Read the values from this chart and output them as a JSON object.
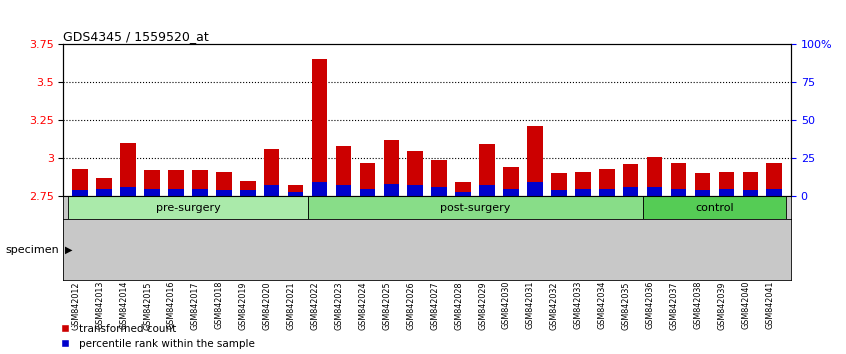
{
  "title": "GDS4345 / 1559520_at",
  "samples": [
    "GSM842012",
    "GSM842013",
    "GSM842014",
    "GSM842015",
    "GSM842016",
    "GSM842017",
    "GSM842018",
    "GSM842019",
    "GSM842020",
    "GSM842021",
    "GSM842022",
    "GSM842023",
    "GSM842024",
    "GSM842025",
    "GSM842026",
    "GSM842027",
    "GSM842028",
    "GSM842029",
    "GSM842030",
    "GSM842031",
    "GSM842032",
    "GSM842033",
    "GSM842034",
    "GSM842035",
    "GSM842036",
    "GSM842037",
    "GSM842038",
    "GSM842039",
    "GSM842040",
    "GSM842041"
  ],
  "red_values": [
    2.93,
    2.87,
    3.1,
    2.92,
    2.92,
    2.92,
    2.91,
    2.85,
    3.06,
    2.82,
    3.65,
    3.08,
    2.97,
    3.12,
    3.05,
    2.99,
    2.84,
    3.09,
    2.94,
    3.21,
    2.9,
    2.91,
    2.93,
    2.96,
    3.01,
    2.97,
    2.9,
    2.91,
    2.91,
    2.97
  ],
  "blue_values": [
    4,
    5,
    6,
    5,
    5,
    5,
    4,
    4,
    7,
    3,
    9,
    7,
    5,
    8,
    7,
    6,
    3,
    7,
    5,
    9,
    4,
    5,
    5,
    6,
    6,
    5,
    4,
    5,
    4,
    5
  ],
  "base": 2.75,
  "ylim_left": [
    2.75,
    3.75
  ],
  "ylim_right": [
    0,
    100
  ],
  "yticks_left": [
    2.75,
    3.0,
    3.25,
    3.5,
    3.75
  ],
  "ytick_labels_left": [
    "2.75",
    "3",
    "3.25",
    "3.5",
    "3.75"
  ],
  "yticks_right": [
    0,
    25,
    50,
    75,
    100
  ],
  "ytick_labels_right": [
    "0",
    "25",
    "50",
    "75",
    "100%"
  ],
  "bar_color_red": "#cc0000",
  "bar_color_blue": "#0000cc",
  "specimen_label": "specimen",
  "legend_items": [
    {
      "color": "#cc0000",
      "label": "transformed count"
    },
    {
      "color": "#0000cc",
      "label": "percentile rank within the sample"
    }
  ],
  "bar_width": 0.65,
  "group_defs": [
    {
      "start": 0,
      "end": 10,
      "color": "#aaeaaa",
      "label": "pre-surgery"
    },
    {
      "start": 10,
      "end": 24,
      "color": "#88dd88",
      "label": "post-surgery"
    },
    {
      "start": 24,
      "end": 30,
      "color": "#55cc55",
      "label": "control"
    }
  ],
  "tick_bg_color": "#c8c8c8",
  "dotted_lines": [
    3.0,
    3.25,
    3.5
  ]
}
